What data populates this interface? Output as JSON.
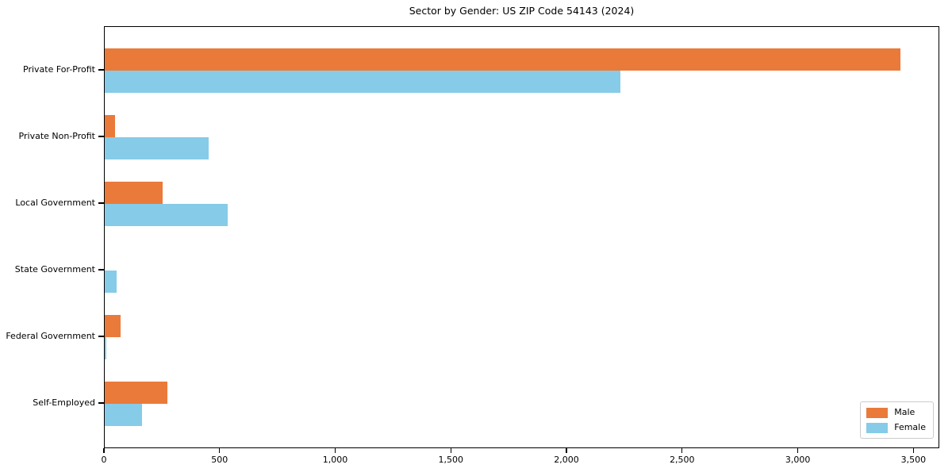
{
  "chart_data": {
    "type": "bar",
    "orientation": "horizontal",
    "title": "Sector by Gender: US ZIP Code 54143 (2024)",
    "categories": [
      "Private For-Profit",
      "Private Non-Profit",
      "Local Government",
      "State Government",
      "Federal Government",
      "Self-Employed"
    ],
    "series": [
      {
        "name": "Male",
        "color": "#ea7a3a",
        "values": [
          3440,
          45,
          250,
          0,
          70,
          270
        ]
      },
      {
        "name": "Female",
        "color": "#86cbe8",
        "values": [
          2230,
          450,
          530,
          50,
          8,
          160
        ]
      }
    ],
    "xlabel": "",
    "ylabel": "",
    "xlim": [
      0,
      3612
    ],
    "xticks": [
      0,
      500,
      1000,
      1500,
      2000,
      2500,
      3000,
      3500
    ],
    "xtick_labels": [
      "0",
      "500",
      "1,000",
      "1,500",
      "2,000",
      "2,500",
      "3,000",
      "3,500"
    ],
    "grid": false,
    "legend_position": "lower right",
    "frame_color": "#000000",
    "background_color": "#ffffff"
  }
}
